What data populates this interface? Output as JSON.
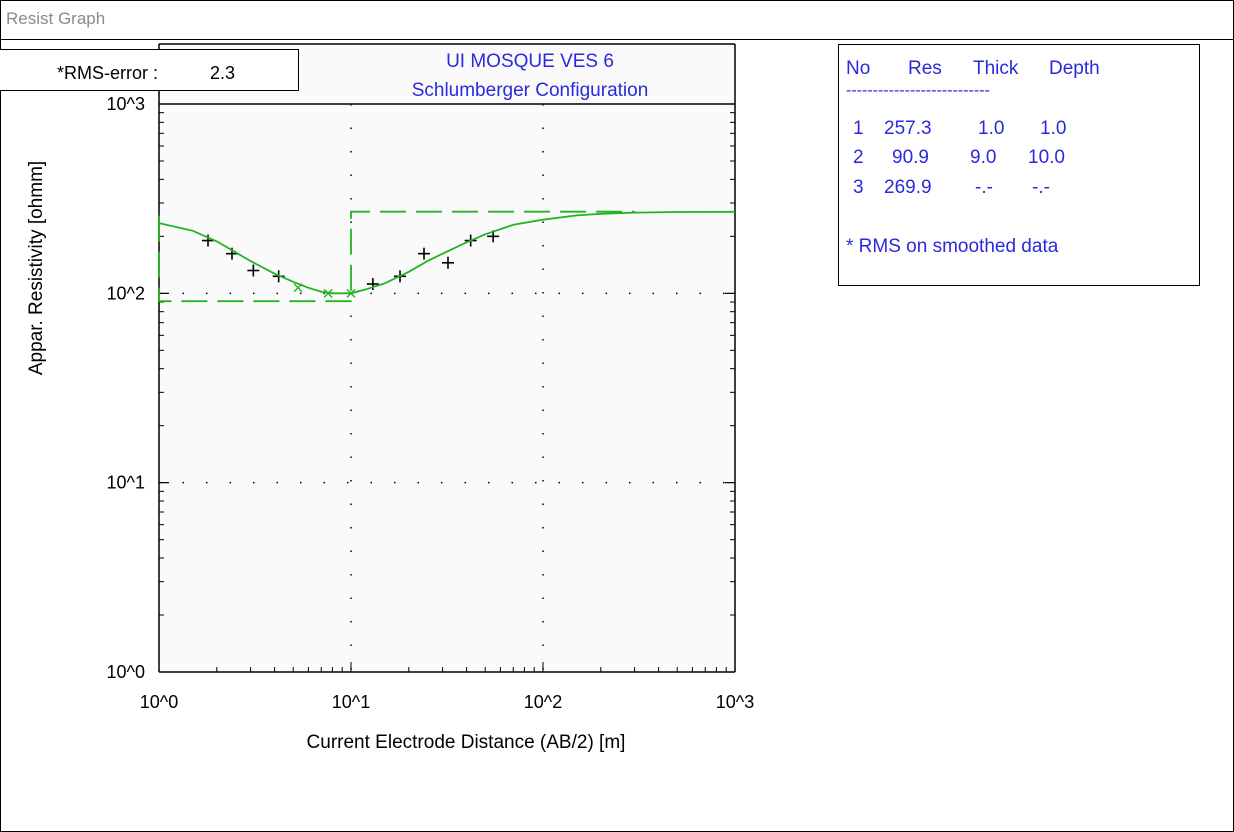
{
  "window": {
    "title": "Resist Graph"
  },
  "rms": {
    "label": "*RMS-error :",
    "value": "2.3"
  },
  "chart_data": {
    "type": "scatter",
    "title": "UI MOSQUE VES 6",
    "subtitle": "Schlumberger Configuration",
    "xlabel": "Current Electrode Distance (AB/2) [m]",
    "ylabel": "Appar. Resistivity [ohmm]",
    "x_scale": "log",
    "y_scale": "log",
    "xlim": [
      1,
      1000
    ],
    "ylim": [
      1,
      1000
    ],
    "x_tick_labels": [
      "10^0",
      "10^1",
      "10^2",
      "10^3"
    ],
    "y_tick_labels": [
      "10^3",
      "10^2",
      "10^1",
      "10^0"
    ],
    "grid": "dotted",
    "series": [
      {
        "kind": "points",
        "marker": "+",
        "color": "#000000",
        "x": [
          1.8,
          2.4,
          3.1,
          4.2,
          13,
          18,
          24,
          32,
          42,
          55
        ],
        "y": [
          190,
          162,
          132,
          123,
          112,
          123,
          162,
          145,
          190,
          200
        ]
      },
      {
        "kind": "points",
        "marker": "x",
        "color": "#22b422",
        "x": [
          5.3,
          7.6,
          10
        ],
        "y": [
          107,
          100,
          100
        ]
      },
      {
        "kind": "curve",
        "color": "#22b422",
        "x": [
          1,
          1.5,
          2,
          2.5,
          3,
          4,
          5,
          6,
          7,
          8,
          9,
          10,
          12,
          15,
          20,
          25,
          30,
          40,
          50,
          70,
          100,
          150,
          200,
          300,
          500,
          1000
        ],
        "y": [
          235,
          214,
          188,
          165,
          148,
          127,
          115,
          107,
          102,
          100,
          100,
          100,
          105,
          113,
          130,
          148,
          162,
          186,
          205,
          230,
          245,
          258,
          263,
          267,
          269,
          269.5
        ]
      },
      {
        "kind": "model-steps",
        "color": "#22b422",
        "x": [
          1,
          1,
          10,
          10,
          300
        ],
        "y": [
          257.3,
          90.9,
          90.9,
          269.9,
          269.9
        ]
      }
    ]
  },
  "layer_table": {
    "headers": {
      "no": "No",
      "res": "Res",
      "thick": "Thick",
      "depth": "Depth"
    },
    "separator": "---------------------------",
    "rows": [
      {
        "no": "1",
        "res": "257.3",
        "thick": "1.0",
        "depth": "1.0"
      },
      {
        "no": "2",
        "res": "90.9",
        "thick": "9.0",
        "depth": "10.0"
      },
      {
        "no": "3",
        "res": "269.9",
        "thick": "-.-",
        "depth": "-.-"
      }
    ],
    "note": "* RMS on smoothed data"
  }
}
